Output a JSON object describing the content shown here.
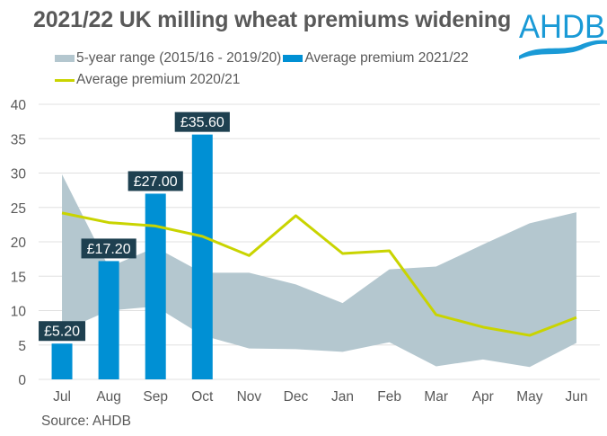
{
  "title": "2021/22 UK milling wheat premiums widening",
  "logo": {
    "text": "AHDB",
    "color": "#1a9ad6"
  },
  "source": "Source: AHDB",
  "colors": {
    "range": "#b4c7cf",
    "bar": "#0090d4",
    "line": "#c9d400",
    "label_bg": "#1e4050",
    "label_text": "#ffffff",
    "grid": "#e0e0e0",
    "text": "#595959"
  },
  "legend": [
    {
      "name": "5-year range (2015/16 - 2019/20)",
      "kind": "box",
      "color": "#b4c7cf"
    },
    {
      "name": "Average premium 2021/22",
      "kind": "box",
      "color": "#0090d4"
    },
    {
      "name": "Average premium 2020/21",
      "kind": "line",
      "color": "#c9d400"
    }
  ],
  "chart_data": {
    "type": "bar",
    "title": "2021/22 UK milling wheat premiums widening",
    "xlabel": "",
    "ylabel": "",
    "ylim": [
      0,
      40
    ],
    "yticks": [
      0,
      5,
      10,
      15,
      20,
      25,
      30,
      35,
      40
    ],
    "grid": true,
    "legend_position": "top",
    "categories": [
      "Jul",
      "Aug",
      "Sep",
      "Oct",
      "Nov",
      "Dec",
      "Jan",
      "Feb",
      "Mar",
      "Apr",
      "May",
      "Jun"
    ],
    "series": [
      {
        "name": "5-year range (2015/16 - 2019/20)",
        "type": "area-range",
        "upper": [
          29.8,
          16.3,
          19.2,
          15.5,
          15.5,
          13.8,
          11.1,
          16.0,
          16.4,
          19.6,
          22.7,
          24.3
        ],
        "lower": [
          7.0,
          10.0,
          10.6,
          6.4,
          4.5,
          4.4,
          4.0,
          5.4,
          1.9,
          2.9,
          1.8,
          5.3
        ]
      },
      {
        "name": "Average premium 2021/22",
        "type": "bar",
        "values": [
          5.2,
          17.2,
          27.0,
          35.6,
          null,
          null,
          null,
          null,
          null,
          null,
          null,
          null
        ],
        "data_labels": [
          "£5.20",
          "£17.20",
          "£27.00",
          "£35.60"
        ]
      },
      {
        "name": "Average premium 2020/21",
        "type": "line",
        "values": [
          24.2,
          22.8,
          22.3,
          20.8,
          18.0,
          23.8,
          18.3,
          18.7,
          9.4,
          7.6,
          6.4,
          9.0
        ]
      }
    ]
  }
}
